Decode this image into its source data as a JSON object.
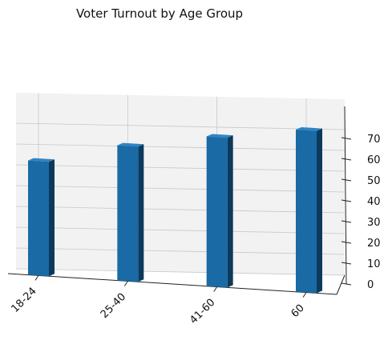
{
  "chart_data": {
    "type": "bar",
    "title": "Voter Turnout by Age Group",
    "xlabel": "",
    "ylabel": "",
    "categories": [
      "18-24",
      "25-40",
      "41-60",
      "60"
    ],
    "values": [
      55,
      65,
      72,
      78
    ],
    "ylim": [
      0,
      80
    ],
    "yticks": [
      0,
      10,
      20,
      30,
      40,
      50,
      60,
      70
    ],
    "grid": true,
    "legend": "none",
    "projection": "3d",
    "colors": {
      "bar_front": "#1a6aa5",
      "bar_side": "#0c3a5c",
      "bar_top": "#2f84c2",
      "pane": "#f2f2f2",
      "grid": "#c8c8c8",
      "axis": "#222222"
    }
  }
}
